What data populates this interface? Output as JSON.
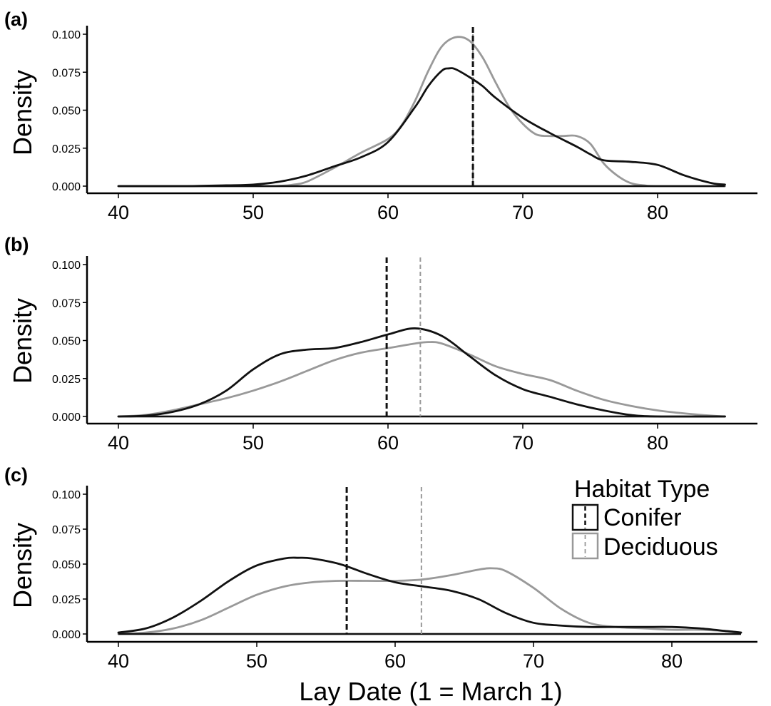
{
  "figure": {
    "xlabel": "Lay Date (1 = March 1)",
    "colors": {
      "Conifer": "#111111",
      "Deciduous": "#999999"
    }
  },
  "legend": {
    "title": "Habitat Type",
    "entries": [
      "Conifer",
      "Deciduous"
    ],
    "placement": "top-right of panel (c)"
  },
  "chart_data": [
    {
      "type": "line",
      "panel_label": "(a)",
      "ylabel": "Density",
      "xlim": [
        40,
        85
      ],
      "ylim": [
        0,
        0.1
      ],
      "xticks": [
        "40",
        "50",
        "60",
        "70",
        "80"
      ],
      "yticks": [
        "0.000",
        "0.025",
        "0.050",
        "0.075",
        "0.100"
      ],
      "grid": false,
      "series": [
        {
          "name": "Conifer",
          "x": [
            40,
            45,
            48,
            50,
            52,
            54,
            56,
            58,
            60,
            62,
            63,
            64,
            64.5,
            65,
            66,
            67,
            68,
            70,
            72,
            74,
            75,
            76,
            78,
            80,
            82,
            84,
            85
          ],
          "y": [
            0,
            0,
            0.0005,
            0.001,
            0.003,
            0.007,
            0.013,
            0.019,
            0.029,
            0.052,
            0.066,
            0.076,
            0.0775,
            0.077,
            0.072,
            0.066,
            0.058,
            0.045,
            0.035,
            0.026,
            0.021,
            0.017,
            0.016,
            0.014,
            0.007,
            0.002,
            0.001
          ],
          "vline": 66.3
        },
        {
          "name": "Deciduous",
          "x": [
            40,
            50,
            52,
            53,
            54,
            56,
            58,
            60,
            61,
            62,
            63,
            64,
            65,
            66,
            67,
            68,
            69,
            70,
            71,
            72,
            73,
            74,
            75,
            76,
            77,
            78,
            79,
            80,
            85
          ],
          "y": [
            0,
            0,
            0.0002,
            0.001,
            0.003,
            0.012,
            0.022,
            0.031,
            0.04,
            0.056,
            0.076,
            0.092,
            0.098,
            0.096,
            0.085,
            0.068,
            0.052,
            0.041,
            0.034,
            0.033,
            0.033,
            0.033,
            0.028,
            0.015,
            0.007,
            0.002,
            0.0005,
            0,
            0
          ],
          "vline": 66.3
        }
      ]
    },
    {
      "type": "line",
      "panel_label": "(b)",
      "ylabel": "Density",
      "xlim": [
        40,
        85
      ],
      "ylim": [
        0,
        0.1
      ],
      "xticks": [
        "40",
        "50",
        "60",
        "70",
        "80"
      ],
      "yticks": [
        "0.000",
        "0.025",
        "0.050",
        "0.075",
        "0.100"
      ],
      "grid": false,
      "series": [
        {
          "name": "Conifer",
          "x": [
            40,
            42,
            44,
            46,
            48,
            50,
            52,
            54,
            56,
            58,
            60,
            62,
            64,
            66,
            68,
            70,
            72,
            74,
            76,
            78,
            80,
            85
          ],
          "y": [
            0,
            0.0005,
            0.003,
            0.008,
            0.017,
            0.031,
            0.041,
            0.044,
            0.045,
            0.049,
            0.054,
            0.058,
            0.053,
            0.04,
            0.027,
            0.018,
            0.013,
            0.008,
            0.004,
            0.001,
            0,
            0
          ],
          "vline": 59.9
        },
        {
          "name": "Deciduous",
          "x": [
            40,
            42,
            44,
            46,
            48,
            50,
            52,
            54,
            56,
            58,
            60,
            62,
            63,
            64,
            66,
            68,
            70,
            72,
            74,
            76,
            78,
            80,
            82,
            84,
            85
          ],
          "y": [
            0,
            0.001,
            0.004,
            0.008,
            0.012,
            0.017,
            0.023,
            0.03,
            0.037,
            0.042,
            0.045,
            0.048,
            0.049,
            0.048,
            0.041,
            0.033,
            0.028,
            0.024,
            0.017,
            0.011,
            0.007,
            0.004,
            0.002,
            0.0005,
            0
          ],
          "vline": 62.4
        }
      ]
    },
    {
      "type": "line",
      "panel_label": "(c)",
      "ylabel": "Density",
      "xlim": [
        40,
        85
      ],
      "ylim": [
        0,
        0.1
      ],
      "xticks": [
        "40",
        "50",
        "60",
        "70",
        "80"
      ],
      "yticks": [
        "0.000",
        "0.025",
        "0.050",
        "0.075",
        "0.100"
      ],
      "grid": false,
      "series": [
        {
          "name": "Conifer",
          "x": [
            40,
            42,
            44,
            46,
            48,
            50,
            52,
            53,
            54,
            56,
            58,
            60,
            62,
            64,
            66,
            68,
            70,
            72,
            74,
            76,
            78,
            80,
            82,
            84,
            85
          ],
          "y": [
            0.001,
            0.004,
            0.012,
            0.024,
            0.038,
            0.049,
            0.054,
            0.0545,
            0.054,
            0.05,
            0.043,
            0.037,
            0.034,
            0.031,
            0.025,
            0.015,
            0.008,
            0.006,
            0.005,
            0.005,
            0.005,
            0.005,
            0.004,
            0.002,
            0.001
          ],
          "vline": 56.5
        },
        {
          "name": "Deciduous",
          "x": [
            40,
            42,
            44,
            46,
            48,
            50,
            52,
            54,
            56,
            58,
            60,
            62,
            64,
            66,
            67,
            68,
            70,
            72,
            74,
            76,
            78,
            80,
            82,
            84,
            85
          ],
          "y": [
            0,
            0.001,
            0.004,
            0.01,
            0.019,
            0.028,
            0.034,
            0.037,
            0.038,
            0.038,
            0.038,
            0.039,
            0.042,
            0.046,
            0.047,
            0.045,
            0.033,
            0.018,
            0.008,
            0.005,
            0.004,
            0.003,
            0.003,
            0.002,
            0.001
          ],
          "vline": 61.9
        }
      ]
    }
  ]
}
